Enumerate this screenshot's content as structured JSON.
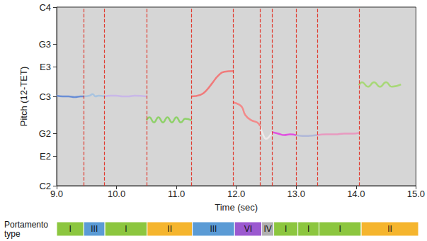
{
  "chart_data": {
    "type": "line",
    "x_label": "Time (sec)",
    "y_label": "Pitch (12-TET)",
    "xlim": [
      9.0,
      15.0
    ],
    "xticks": [
      {
        "value": 9,
        "label": "9.0"
      },
      {
        "value": 10,
        "label": "10.0"
      },
      {
        "value": 11,
        "label": "11.0"
      },
      {
        "value": 12,
        "label": "12.0"
      },
      {
        "value": 13,
        "label": "13.0"
      },
      {
        "value": 14,
        "label": "14.0"
      },
      {
        "value": 15,
        "label": "15.0"
      }
    ],
    "ylim": [
      36,
      60
    ],
    "yticks": [
      {
        "value": 36,
        "label": "C2"
      },
      {
        "value": 40,
        "label": "E2"
      },
      {
        "value": 43,
        "label": "G2"
      },
      {
        "value": 48,
        "label": "C3"
      },
      {
        "value": 52,
        "label": "E3"
      },
      {
        "value": 55,
        "label": "G3"
      },
      {
        "value": 60,
        "label": "C4"
      }
    ],
    "grid": false,
    "series": [
      {
        "color": "#6b8fd6",
        "x": [
          9.0,
          9.1,
          9.2,
          9.3,
          9.4,
          9.45
        ],
        "values": [
          48.1,
          48.0,
          48.0,
          47.9,
          48.0,
          48.0
        ]
      },
      {
        "color": "#a9c4e0",
        "x": [
          9.45,
          9.55,
          9.6,
          9.65,
          9.7,
          9.8
        ],
        "values": [
          48.0,
          48.1,
          48.3,
          48.0,
          48.1,
          48.0
        ]
      },
      {
        "color": "#c9b8e8",
        "x": [
          9.8,
          9.9,
          10.0,
          10.1,
          10.2,
          10.3,
          10.5
        ],
        "values": [
          48.0,
          48.1,
          48.1,
          48.0,
          48.0,
          48.1,
          48.0
        ]
      },
      {
        "color": "#8fd16a",
        "x": [
          10.5,
          10.55,
          10.625,
          10.7,
          10.775,
          10.85,
          10.925,
          11.0,
          11.075,
          11.15,
          11.25
        ],
        "values": [
          44.8,
          45.2,
          44.5,
          45.2,
          44.5,
          45.2,
          44.5,
          45.2,
          44.5,
          45.0,
          44.8
        ]
      },
      {
        "color": "#f07b7b",
        "x": [
          11.25,
          11.4,
          11.5,
          11.6,
          11.7,
          11.8,
          11.95
        ],
        "values": [
          48.0,
          48.2,
          48.8,
          49.8,
          50.8,
          51.3,
          51.4
        ]
      },
      {
        "color": "#f28a8a",
        "x": [
          11.95,
          12.05,
          12.1,
          12.15,
          12.25,
          12.35,
          12.4
        ],
        "values": [
          47.2,
          46.9,
          46.5,
          45.5,
          44.8,
          44.5,
          44.0
        ]
      },
      {
        "color": "#eeeaea",
        "x": [
          12.4,
          12.45,
          12.5,
          12.55,
          12.6
        ],
        "values": [
          44.0,
          42.8,
          42.3,
          42.6,
          43.2
        ]
      },
      {
        "color": "#e050e0",
        "x": [
          12.6,
          12.7,
          12.8,
          12.9,
          13.0
        ],
        "values": [
          43.2,
          43.0,
          42.8,
          42.9,
          42.8
        ]
      },
      {
        "color": "#b0b8d8",
        "x": [
          13.0,
          13.1,
          13.2,
          13.35
        ],
        "values": [
          42.8,
          42.7,
          42.7,
          42.8
        ]
      },
      {
        "color": "#e89ac0",
        "x": [
          13.35,
          13.5,
          13.65,
          13.8,
          13.95,
          14.05
        ],
        "values": [
          42.8,
          42.9,
          42.9,
          43.0,
          43.0,
          43.1
        ]
      },
      {
        "color": "#a8d878",
        "x": [
          14.05,
          14.1,
          14.2,
          14.3,
          14.4,
          14.5,
          14.6,
          14.75
        ],
        "values": [
          49.5,
          49.9,
          49.3,
          49.9,
          49.3,
          49.9,
          49.3,
          49.6
        ]
      }
    ],
    "boundaries": [
      9.45,
      9.8,
      10.5,
      11.25,
      11.95,
      12.4,
      12.6,
      13.0,
      13.35,
      14.05
    ],
    "boundary_color": "#e03c31",
    "segments_title": "Portamento type",
    "segments": [
      {
        "start": 9.0,
        "end": 9.45,
        "label": "I",
        "color": "#8cc63f"
      },
      {
        "start": 9.45,
        "end": 9.8,
        "label": "III",
        "color": "#5b9bd5"
      },
      {
        "start": 9.8,
        "end": 10.5,
        "label": "I",
        "color": "#8cc63f"
      },
      {
        "start": 10.5,
        "end": 11.25,
        "label": "II",
        "color": "#f5b52e"
      },
      {
        "start": 11.25,
        "end": 11.95,
        "label": "III",
        "color": "#5b9bd5"
      },
      {
        "start": 11.95,
        "end": 12.4,
        "label": "VI",
        "color": "#9b59d0"
      },
      {
        "start": 12.4,
        "end": 12.6,
        "label": "IV",
        "color": "#b0b0b0"
      },
      {
        "start": 12.6,
        "end": 13.0,
        "label": "I",
        "color": "#8cc63f"
      },
      {
        "start": 13.0,
        "end": 13.35,
        "label": "I",
        "color": "#8cc63f"
      },
      {
        "start": 13.35,
        "end": 14.05,
        "label": "I",
        "color": "#8cc63f"
      },
      {
        "start": 14.05,
        "end": 15.0,
        "label": "II",
        "color": "#f5b52e"
      }
    ]
  }
}
